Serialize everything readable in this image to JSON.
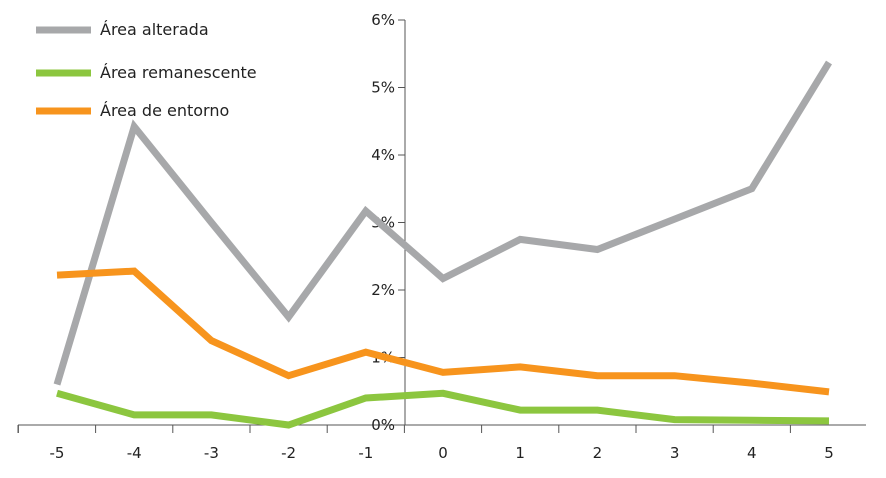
{
  "chart_data": {
    "type": "line",
    "x": [
      -5,
      -4,
      -3,
      -2,
      -1,
      0,
      1,
      2,
      3,
      4,
      5
    ],
    "x_tick_labels": [
      "-5",
      "-4",
      "-3",
      "-2",
      "-1",
      "0",
      "1",
      "2",
      "3",
      "4",
      "5"
    ],
    "y_tick_labels": [
      "0%",
      "1%",
      "2%",
      "3%",
      "4%",
      "5%",
      "6%"
    ],
    "ylim": [
      0,
      6
    ],
    "grid": false,
    "legend_position": "top-left",
    "series": [
      {
        "name": "Área alterada",
        "color": "#a7a8aa",
        "values": [
          0.6,
          4.42,
          3.0,
          1.6,
          3.17,
          2.17,
          2.75,
          2.6,
          3.05,
          3.5,
          5.37
        ]
      },
      {
        "name": "Área remanescente",
        "color": "#8cc63f",
        "values": [
          0.47,
          0.15,
          0.15,
          0.0,
          0.4,
          0.47,
          0.22,
          0.22,
          0.08,
          0.07,
          0.06
        ]
      },
      {
        "name": "Área de entorno",
        "color": "#f7941d",
        "values": [
          2.22,
          2.28,
          1.25,
          0.73,
          1.08,
          0.78,
          0.86,
          0.73,
          0.73,
          0.62,
          0.49
        ]
      }
    ]
  }
}
